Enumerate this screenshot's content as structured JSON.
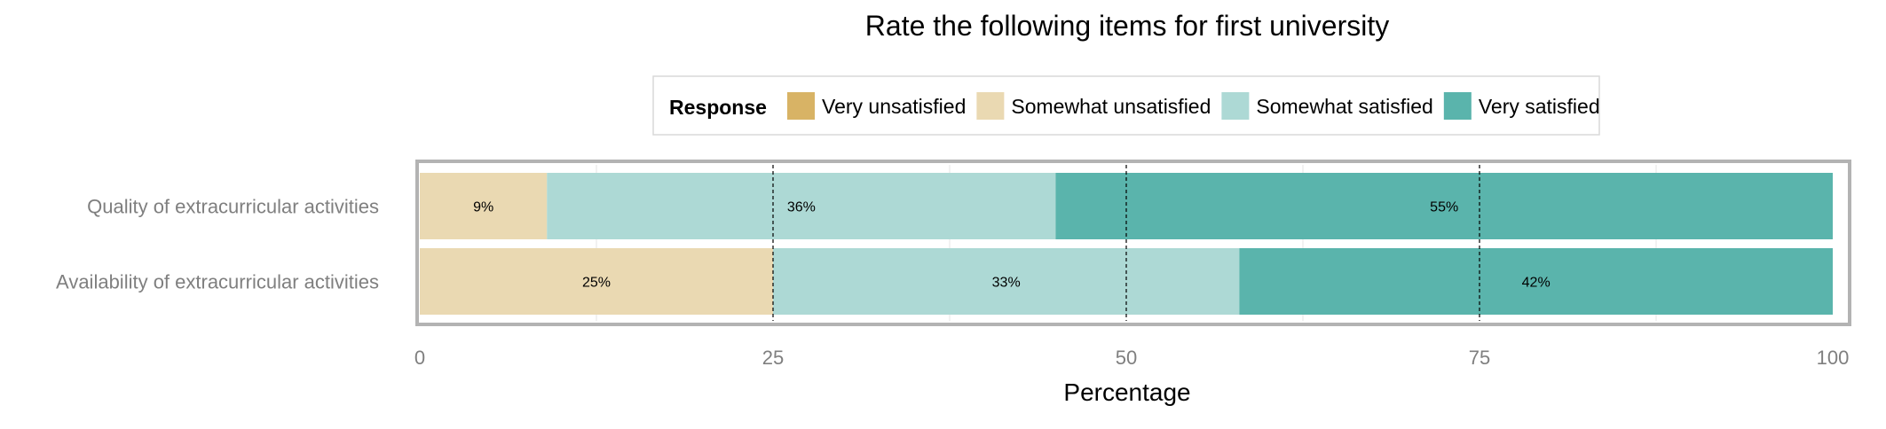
{
  "chart_data": {
    "type": "bar",
    "orientation": "horizontal",
    "stacked": true,
    "title": "Rate the following items for first university",
    "xlabel": "Percentage",
    "ylabel": "",
    "xlim": [
      0,
      100
    ],
    "xticks": [
      "0",
      "25",
      "50",
      "75",
      "100"
    ],
    "grid": true,
    "legend": {
      "position": "top",
      "title": "Response",
      "entries": [
        "Very unsatisfied",
        "Somewhat unsatisfied",
        "Somewhat satisfied",
        "Very satisfied"
      ]
    },
    "categories": [
      "Quality of extracurricular activities",
      "Availability of extracurricular activities"
    ],
    "series": [
      {
        "name": "Very unsatisfied",
        "color": "#d8b365",
        "values": [
          0,
          0
        ],
        "labels": [
          "",
          ""
        ]
      },
      {
        "name": "Somewhat unsatisfied",
        "color": "#ead9b2",
        "values": [
          9,
          25
        ],
        "labels": [
          "9%",
          "25%"
        ]
      },
      {
        "name": "Somewhat satisfied",
        "color": "#add9d5",
        "values": [
          36,
          33
        ],
        "labels": [
          "36%",
          "33%"
        ]
      },
      {
        "name": "Very satisfied",
        "color": "#5ab4ac",
        "values": [
          55,
          42
        ],
        "labels": [
          "55%",
          "42%"
        ]
      }
    ]
  }
}
